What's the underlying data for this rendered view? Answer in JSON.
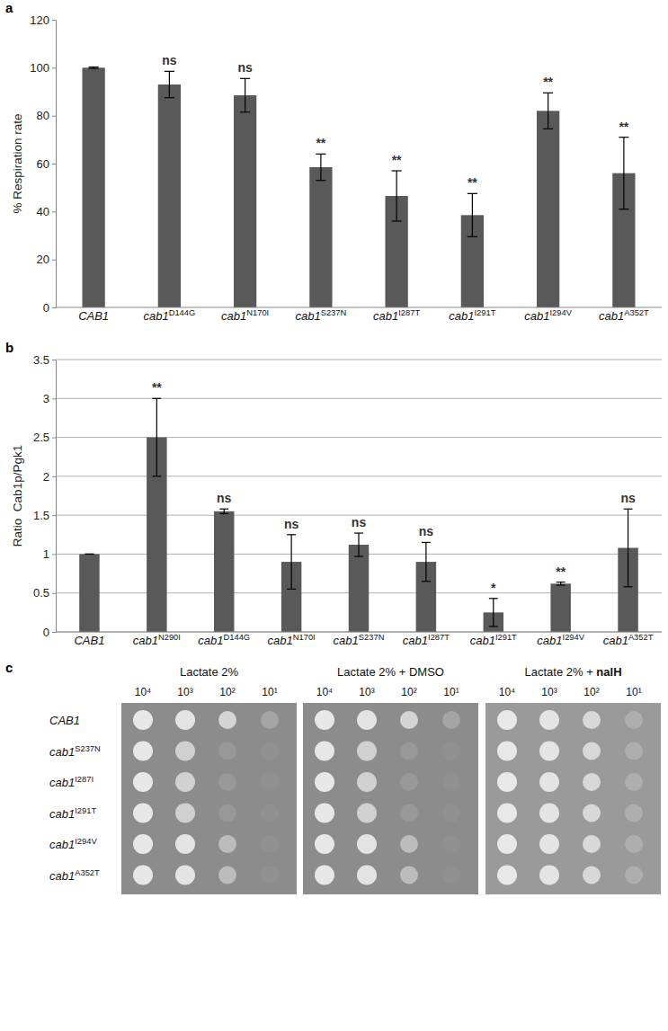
{
  "chart_data": [
    {
      "type": "bar",
      "title": "a",
      "y_label": "% Respiration rate",
      "categories": [
        "CAB1",
        "cab1D144G",
        "cab1N170I",
        "cab1S237N",
        "cab1I287T",
        "cab1I291T",
        "cab1I294V",
        "cab1A352T"
      ],
      "values": [
        100,
        93,
        88.5,
        58.5,
        46.5,
        38.5,
        82,
        56
      ],
      "errors": [
        0.3,
        5.5,
        7,
        5.5,
        10.5,
        9,
        7.5,
        15
      ],
      "annotations": [
        null,
        "ns",
        "ns",
        "**",
        "**",
        "**",
        "**",
        "**"
      ],
      "color": "#595959",
      "ylim": [
        0,
        120
      ],
      "yticks": [
        0,
        20,
        40,
        60,
        80,
        100,
        120
      ],
      "grid": false
    },
    {
      "type": "bar",
      "title": "b",
      "y_label": "Ratio  Cab1p/Pgk1",
      "categories": [
        "CAB1",
        "cab1N290I",
        "cab1D144G",
        "cab1N170I",
        "cab1S237N",
        "cab1I287T",
        "cab1I291T",
        "cab1I294V",
        "cab1A352T"
      ],
      "values": [
        1,
        2.5,
        1.55,
        0.9,
        1.12,
        0.9,
        0.25,
        0.62,
        1.08
      ],
      "errors": [
        0,
        0.5,
        0.03,
        0.35,
        0.15,
        0.25,
        0.18,
        0.02,
        0.5
      ],
      "annotations": [
        null,
        "**",
        "ns",
        "ns",
        "ns",
        "ns",
        "*",
        "**",
        "ns"
      ],
      "color": "#595959",
      "ylim": [
        0,
        3.5
      ],
      "yticks": [
        0,
        0.5,
        1,
        1.5,
        2,
        2.5,
        3,
        3.5
      ],
      "grid": true
    }
  ],
  "plates": {
    "title": "c",
    "headings": [
      {
        "text": "Lactate 2%"
      },
      {
        "text": "Lactate 2% + DMSO"
      },
      {
        "text": "Lactate 2% + ",
        "bold": "nalH"
      }
    ],
    "dilutions": [
      "10⁴",
      "10³",
      "10²",
      "10¹"
    ],
    "strains": [
      "CAB1",
      "cab1S237N",
      "cab1I287I",
      "cab1I291T",
      "cab1I294V",
      "cab1A352T"
    ]
  }
}
